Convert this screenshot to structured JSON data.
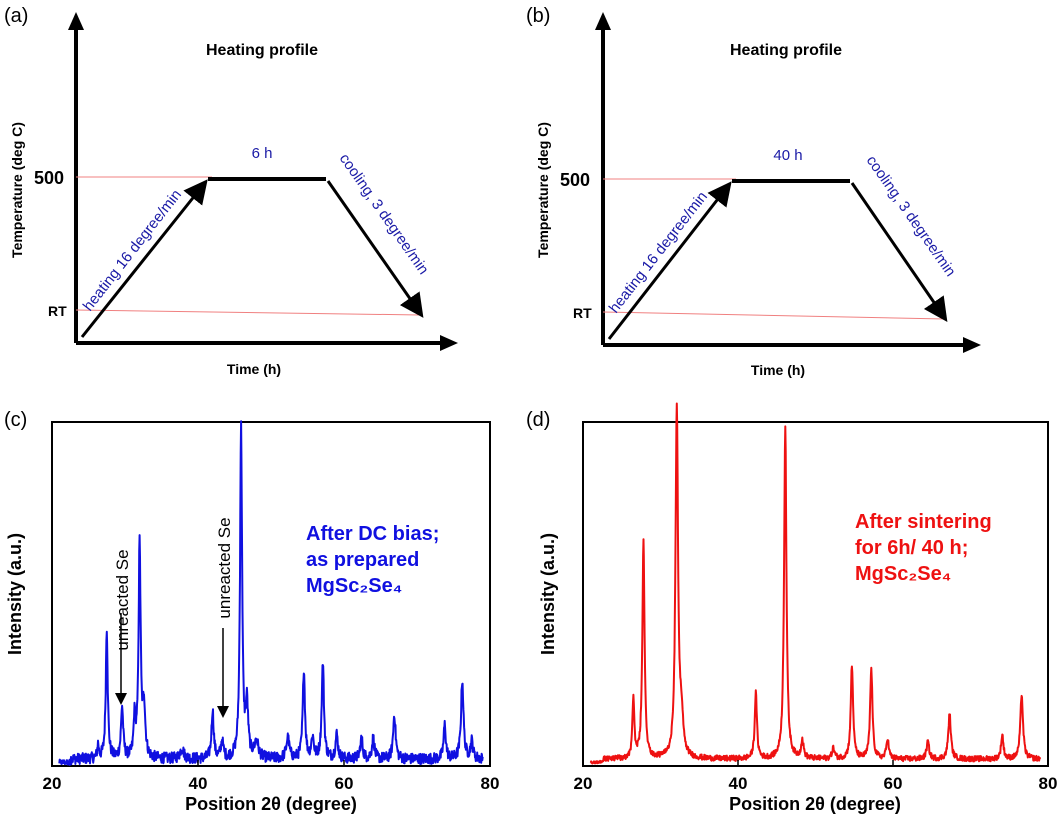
{
  "chart_data": [
    {
      "panel": "(a)",
      "type": "line",
      "title": "Heating profile",
      "xlabel": "Time (h)",
      "ylabel": "Temperature (deg C)",
      "y_ticks": [
        "RT",
        "500"
      ],
      "hold_label": "6 h",
      "heating_label": "heating 16 degree/min",
      "cooling_label": "cooling, 3 degree/min",
      "hold_temperature": 500,
      "grid": false
    },
    {
      "panel": "(b)",
      "type": "line",
      "title": "Heating profile",
      "xlabel": "Time (h)",
      "ylabel": "Temperature (deg C)",
      "y_ticks": [
        "RT",
        "500"
      ],
      "hold_label": "40 h",
      "heating_label": "heating 16 degree/min",
      "cooling_label": "cooling, 3 degree/min",
      "hold_temperature": 500,
      "grid": false
    },
    {
      "panel": "(c)",
      "type": "line",
      "xlabel": "Position 2θ (degree)",
      "ylabel": "Intensity (a.u.)",
      "xlim": [
        20,
        80
      ],
      "ylim": [
        0,
        100
      ],
      "x_ticks": [
        20,
        40,
        60,
        80
      ],
      "color": "#1010e0",
      "legend": [
        "After DC bias;",
        "as prepared",
        "MgSc₂Se₄"
      ],
      "annotations": [
        {
          "text": "unreacted Se",
          "x": 29.6
        },
        {
          "text": "unreacted Se",
          "x": 43.5
        }
      ],
      "baseline": 2,
      "noise": 1.6,
      "peaks": [
        {
          "x": 26.3,
          "h": 4,
          "w": 0.12
        },
        {
          "x": 27.5,
          "h": 38,
          "w": 0.16
        },
        {
          "x": 29.6,
          "h": 15,
          "w": 0.18
        },
        {
          "x": 31.3,
          "h": 11,
          "w": 0.15
        },
        {
          "x": 32.0,
          "h": 62,
          "w": 0.17
        },
        {
          "x": 32.6,
          "h": 15,
          "w": 0.2
        },
        {
          "x": 37.8,
          "h": 3,
          "w": 0.3
        },
        {
          "x": 42.0,
          "h": 14,
          "w": 0.18
        },
        {
          "x": 43.3,
          "h": 5,
          "w": 0.2
        },
        {
          "x": 45.9,
          "h": 96,
          "w": 0.17
        },
        {
          "x": 46.7,
          "h": 15,
          "w": 0.2
        },
        {
          "x": 48.0,
          "h": 5,
          "w": 0.3
        },
        {
          "x": 52.3,
          "h": 6,
          "w": 0.25
        },
        {
          "x": 54.5,
          "h": 26,
          "w": 0.18
        },
        {
          "x": 55.7,
          "h": 6,
          "w": 0.2
        },
        {
          "x": 57.1,
          "h": 28,
          "w": 0.18
        },
        {
          "x": 59.0,
          "h": 7,
          "w": 0.2
        },
        {
          "x": 62.4,
          "h": 6,
          "w": 0.2
        },
        {
          "x": 64.0,
          "h": 6,
          "w": 0.2
        },
        {
          "x": 66.9,
          "h": 13,
          "w": 0.2
        },
        {
          "x": 73.8,
          "h": 10,
          "w": 0.18
        },
        {
          "x": 76.2,
          "h": 23,
          "w": 0.2
        },
        {
          "x": 77.5,
          "h": 5,
          "w": 0.2
        }
      ]
    },
    {
      "panel": "(d)",
      "type": "line",
      "xlabel": "Position 2θ (degree)",
      "ylabel": "Intensity (a.u.)",
      "xlim": [
        20,
        80
      ],
      "ylim": [
        0,
        100
      ],
      "x_ticks": [
        20,
        40,
        60,
        80
      ],
      "color": "#ee1111",
      "legend": [
        "After sintering",
        "for 6h/ 40 h;",
        "MgSc₂Se₄"
      ],
      "baseline": 2,
      "noise": 0.8,
      "peaks": [
        {
          "x": 26.5,
          "h": 17,
          "w": 0.15
        },
        {
          "x": 27.8,
          "h": 63,
          "w": 0.17
        },
        {
          "x": 32.1,
          "h": 101,
          "w": 0.2
        },
        {
          "x": 32.7,
          "h": 10,
          "w": 0.25
        },
        {
          "x": 42.3,
          "h": 19,
          "w": 0.17
        },
        {
          "x": 46.1,
          "h": 97,
          "w": 0.18
        },
        {
          "x": 48.3,
          "h": 5,
          "w": 0.2
        },
        {
          "x": 52.3,
          "h": 3,
          "w": 0.2
        },
        {
          "x": 54.7,
          "h": 27,
          "w": 0.18
        },
        {
          "x": 57.2,
          "h": 26,
          "w": 0.18
        },
        {
          "x": 59.3,
          "h": 6,
          "w": 0.18
        },
        {
          "x": 64.5,
          "h": 5,
          "w": 0.2
        },
        {
          "x": 67.3,
          "h": 13,
          "w": 0.2
        },
        {
          "x": 74.1,
          "h": 7,
          "w": 0.18
        },
        {
          "x": 76.6,
          "h": 19,
          "w": 0.2
        }
      ]
    }
  ]
}
